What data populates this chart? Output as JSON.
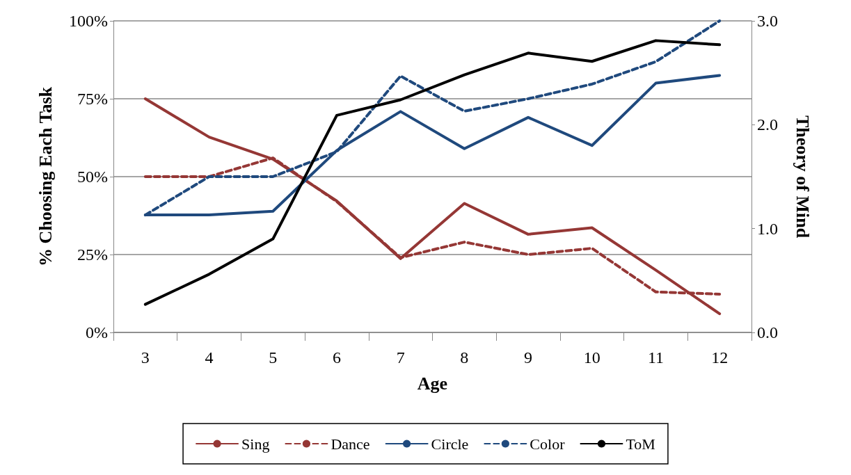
{
  "chart_data": {
    "type": "line",
    "xlabel": "Age",
    "ylabel": "% Choosing Each Task",
    "y2label": "Theory of Mind",
    "categories": [
      "3",
      "4",
      "5",
      "6",
      "7",
      "8",
      "9",
      "10",
      "11",
      "12"
    ],
    "series": [
      {
        "name": "Sing",
        "color": "#953735",
        "line_style": "solid",
        "values": [
          75,
          62.7,
          55.6,
          42.2,
          23.7,
          41.4,
          31.5,
          33.6,
          20,
          6
        ]
      },
      {
        "name": "Dance",
        "color": "#953735",
        "line_style": "dashed",
        "values": [
          50,
          50,
          56,
          42,
          24,
          29,
          25,
          27,
          13,
          12.3
        ]
      },
      {
        "name": "Circle",
        "color": "#1f497d",
        "line_style": "solid",
        "values": [
          37.7,
          37.7,
          38.9,
          58.4,
          70.9,
          59,
          69,
          60,
          80,
          82.5
        ]
      },
      {
        "name": "Color",
        "color": "#1f497d",
        "line_style": "dashed",
        "values": [
          37.7,
          50,
          50,
          58,
          82.3,
          71,
          75,
          79.7,
          86.9,
          100
        ]
      },
      {
        "name": "ToM",
        "color": "#000000",
        "line_style": "solid",
        "axis": "y2",
        "values": [
          0.27,
          0.56,
          0.9,
          2.09,
          2.24,
          2.48,
          2.69,
          2.61,
          2.81,
          2.77
        ]
      }
    ],
    "ylim": [
      0,
      100
    ],
    "yticks": [
      {
        "value": 0,
        "label": "0%"
      },
      {
        "value": 25,
        "label": "25%"
      },
      {
        "value": 50,
        "label": "50%"
      },
      {
        "value": 75,
        "label": "75%"
      },
      {
        "value": 100,
        "label": "100%"
      }
    ],
    "y2lim": [
      0,
      3
    ],
    "y2ticks": [
      {
        "value": 0,
        "label": "0.0"
      },
      {
        "value": 1,
        "label": "1.0"
      },
      {
        "value": 2,
        "label": "2.0"
      },
      {
        "value": 3,
        "label": "3.0"
      }
    ],
    "grid": "y",
    "legend": "bottom",
    "marker": "none"
  }
}
